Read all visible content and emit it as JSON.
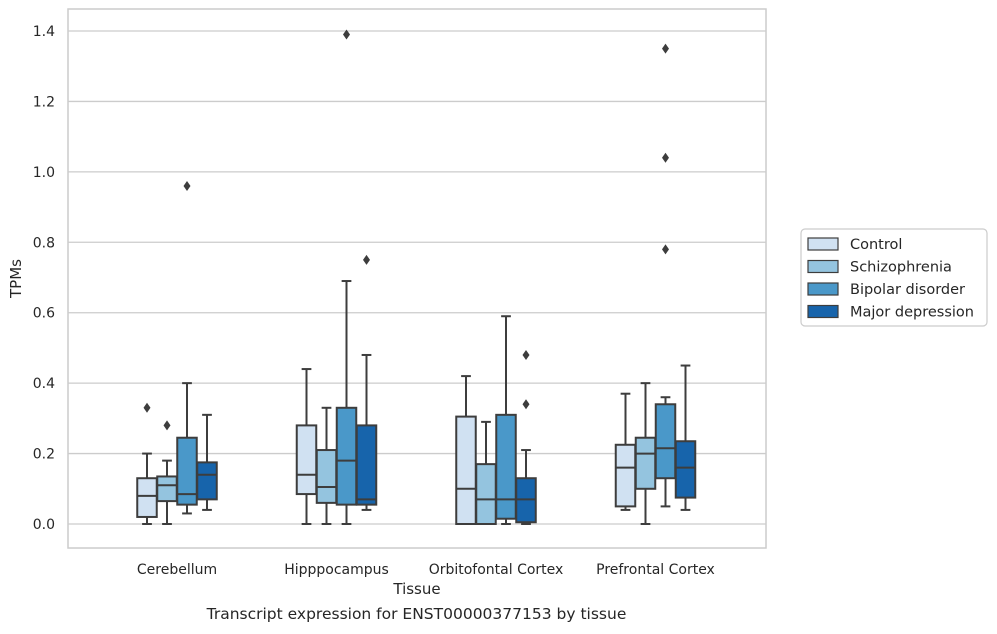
{
  "chart_data": {
    "type": "box",
    "caption": "Transcript expression for ENST00000377153 by tissue",
    "xlabel": "Tissue",
    "ylabel": "TPMs",
    "ylim": [
      -0.065,
      1.46
    ],
    "yticks": [
      0.0,
      0.2,
      0.4,
      0.6,
      0.8,
      1.0,
      1.2,
      1.4
    ],
    "ytick_labels": [
      "0.0",
      "0.2",
      "0.4",
      "0.6",
      "0.8",
      "1.0",
      "1.2",
      "1.4"
    ],
    "grid": "horizontal",
    "legend_position": "right",
    "categories": [
      "Cerebellum",
      "Hipppocampus",
      "Orbitofontal Cortex",
      "Prefrontal Cortex"
    ],
    "series": [
      {
        "name": "Control",
        "color": "#d0e1f2",
        "boxes": [
          {
            "whislo": 0.0,
            "q1": 0.02,
            "med": 0.08,
            "q3": 0.13,
            "whishi": 0.2,
            "fliers": [
              0.33
            ]
          },
          {
            "whislo": 0.0,
            "q1": 0.085,
            "med": 0.14,
            "q3": 0.28,
            "whishi": 0.44,
            "fliers": []
          },
          {
            "whislo": 0.0,
            "q1": 0.0,
            "med": 0.1,
            "q3": 0.305,
            "whishi": 0.42,
            "fliers": []
          },
          {
            "whislo": 0.04,
            "q1": 0.05,
            "med": 0.16,
            "q3": 0.225,
            "whishi": 0.37,
            "fliers": []
          }
        ]
      },
      {
        "name": "Schizophrenia",
        "color": "#94c4df",
        "boxes": [
          {
            "whislo": 0.0,
            "q1": 0.065,
            "med": 0.11,
            "q3": 0.135,
            "whishi": 0.18,
            "fliers": [
              0.28
            ]
          },
          {
            "whislo": 0.0,
            "q1": 0.06,
            "med": 0.105,
            "q3": 0.21,
            "whishi": 0.33,
            "fliers": []
          },
          {
            "whislo": 0.0,
            "q1": 0.0,
            "med": 0.07,
            "q3": 0.17,
            "whishi": 0.29,
            "fliers": []
          },
          {
            "whislo": 0.0,
            "q1": 0.1,
            "med": 0.2,
            "q3": 0.245,
            "whishi": 0.4,
            "fliers": []
          }
        ]
      },
      {
        "name": "Bipolar disorder",
        "color": "#4a98c9",
        "boxes": [
          {
            "whislo": 0.03,
            "q1": 0.055,
            "med": 0.085,
            "q3": 0.245,
            "whishi": 0.4,
            "fliers": [
              0.96
            ]
          },
          {
            "whislo": 0.0,
            "q1": 0.055,
            "med": 0.18,
            "q3": 0.33,
            "whishi": 0.69,
            "fliers": [
              1.39
            ]
          },
          {
            "whislo": 0.0,
            "q1": 0.015,
            "med": 0.07,
            "q3": 0.31,
            "whishi": 0.59,
            "fliers": []
          },
          {
            "whislo": 0.05,
            "q1": 0.13,
            "med": 0.215,
            "q3": 0.34,
            "whishi": 0.36,
            "fliers": [
              0.78,
              1.04,
              1.35
            ]
          }
        ]
      },
      {
        "name": "Major depression",
        "color": "#1764ab",
        "boxes": [
          {
            "whislo": 0.04,
            "q1": 0.07,
            "med": 0.14,
            "q3": 0.175,
            "whishi": 0.31,
            "fliers": []
          },
          {
            "whislo": 0.04,
            "q1": 0.055,
            "med": 0.07,
            "q3": 0.28,
            "whishi": 0.48,
            "fliers": [
              0.75
            ]
          },
          {
            "whislo": 0.0,
            "q1": 0.005,
            "med": 0.07,
            "q3": 0.13,
            "whishi": 0.21,
            "fliers": [
              0.34,
              0.48
            ]
          },
          {
            "whislo": 0.04,
            "q1": 0.075,
            "med": 0.16,
            "q3": 0.235,
            "whishi": 0.45,
            "fliers": []
          }
        ]
      }
    ]
  }
}
